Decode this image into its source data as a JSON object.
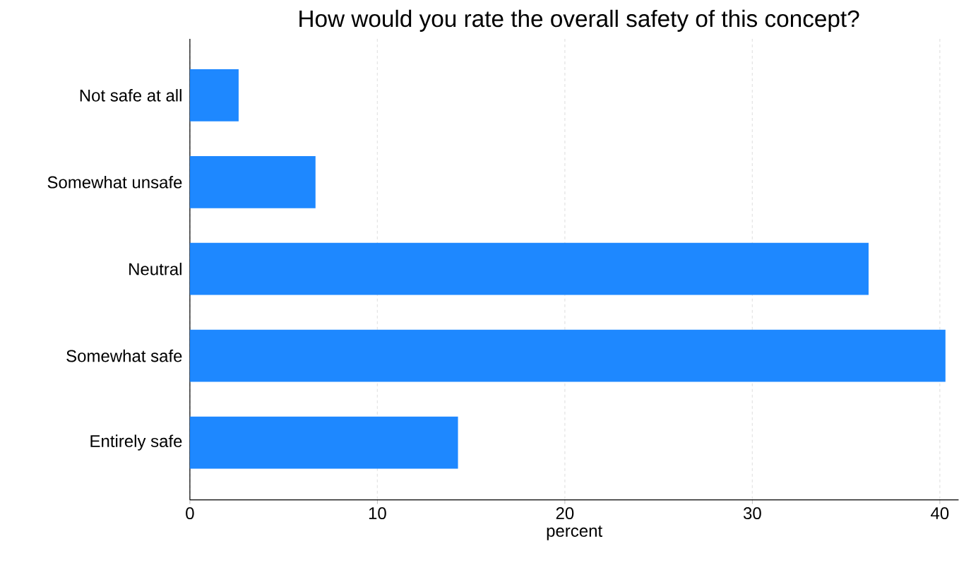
{
  "chart_data": {
    "type": "bar",
    "orientation": "horizontal",
    "title": "How would you rate the overall safety of this concept?",
    "xlabel": "percent",
    "categories": [
      "Not safe at all",
      "Somewhat unsafe",
      "Neutral",
      "Somewhat safe",
      "Entirely safe"
    ],
    "values": [
      2.6,
      6.7,
      36.2,
      40.3,
      14.3
    ],
    "color": "#1e88ff",
    "xlim": [
      0,
      41
    ],
    "xticks": [
      0,
      10,
      20,
      30,
      40
    ],
    "grid": "x"
  }
}
